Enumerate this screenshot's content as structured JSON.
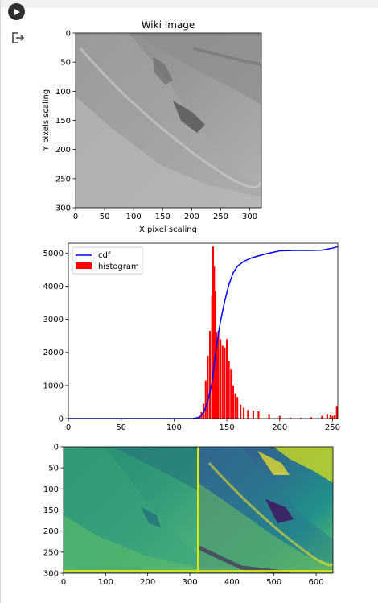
{
  "cell": {
    "run_icon": "play-icon",
    "output_icon": "output-exit-icon"
  },
  "chart_data": [
    {
      "type": "image",
      "title": "Wiki Image",
      "xlabel": "X pixel scaling",
      "ylabel": "Y pixels scaling",
      "xticks": [
        "0",
        "50",
        "100",
        "150",
        "200",
        "250",
        "300"
      ],
      "yticks": [
        "0",
        "50",
        "100",
        "150",
        "200",
        "250",
        "300"
      ],
      "xlim": [
        0,
        320
      ],
      "ylim": [
        300,
        0
      ],
      "colormap": "gray"
    },
    {
      "type": "bar+line",
      "xticks": [
        "0",
        "50",
        "100",
        "150",
        "200",
        "250"
      ],
      "yticks": [
        "0",
        "1000",
        "2000",
        "3000",
        "4000",
        "5000"
      ],
      "xlim": [
        0,
        255
      ],
      "ylim": [
        0,
        5300
      ],
      "legend_position": "top-left",
      "series": [
        {
          "name": "histogram",
          "type": "bar",
          "color": "#ff0000",
          "x": [
            124,
            126,
            128,
            130,
            132,
            134,
            136,
            137,
            138,
            139,
            140,
            141,
            142,
            144,
            146,
            148,
            150,
            152,
            154,
            156,
            158,
            160,
            163,
            166,
            170,
            175,
            180,
            190,
            200,
            210,
            220,
            230,
            240,
            245,
            248,
            250,
            252,
            254
          ],
          "values": [
            60,
            200,
            450,
            1150,
            1900,
            2650,
            3700,
            5200,
            4600,
            3850,
            2600,
            2300,
            2650,
            2400,
            2200,
            2150,
            2400,
            1750,
            1500,
            1000,
            760,
            650,
            420,
            330,
            260,
            240,
            220,
            140,
            80,
            30,
            20,
            40,
            80,
            140,
            120,
            80,
            100,
            380
          ]
        },
        {
          "name": "cdf",
          "type": "line",
          "color": "#0000ff",
          "x": [
            0,
            100,
            118,
            124,
            128,
            132,
            136,
            140,
            144,
            148,
            152,
            156,
            160,
            166,
            174,
            185,
            200,
            215,
            230,
            240,
            245,
            250,
            255
          ],
          "values": [
            0,
            0,
            0,
            40,
            180,
            520,
            1100,
            2150,
            2950,
            3550,
            4050,
            4400,
            4600,
            4750,
            4860,
            4960,
            5070,
            5080,
            5080,
            5090,
            5120,
            5150,
            5200
          ]
        }
      ]
    },
    {
      "type": "image",
      "xticks": [
        "0",
        "100",
        "200",
        "300",
        "400",
        "500",
        "600"
      ],
      "yticks": [
        "0",
        "50",
        "100",
        "150",
        "200",
        "250",
        "300"
      ],
      "xlim": [
        0,
        640
      ],
      "ylim": [
        300,
        0
      ],
      "colormap": "viridis"
    }
  ]
}
